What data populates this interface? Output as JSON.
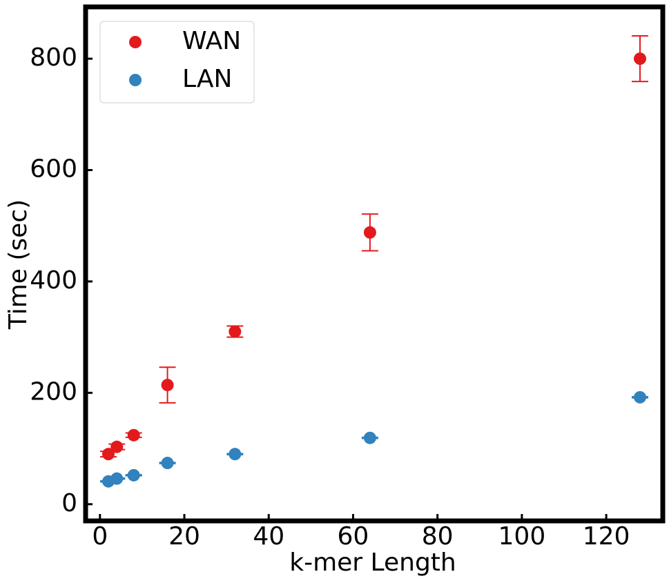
{
  "chart_data": {
    "type": "scatter",
    "x_label": "k-mer Length",
    "y_label": "Time (sec)",
    "xlim": [
      -3.4,
      133.4
    ],
    "ylim": [
      -30,
      893
    ],
    "xticks": [
      0,
      20,
      40,
      60,
      80,
      100,
      120
    ],
    "yticks": [
      0,
      200,
      400,
      600,
      800
    ],
    "legend": "upper left",
    "series": [
      {
        "name": "WAN",
        "color": "#e31a1c",
        "x": [
          2,
          4,
          8,
          16,
          32,
          64,
          128
        ],
        "values": [
          90,
          103,
          124,
          214,
          310,
          488,
          800
        ],
        "errors": [
          5,
          5,
          4,
          32,
          10,
          33,
          41
        ]
      },
      {
        "name": "LAN",
        "color": "#3182bd",
        "x": [
          2,
          4,
          8,
          16,
          32,
          64,
          128
        ],
        "values": [
          41,
          46,
          52,
          74,
          90,
          119,
          192
        ],
        "errors": [
          1,
          1,
          1,
          1,
          1,
          1,
          1
        ]
      }
    ]
  }
}
